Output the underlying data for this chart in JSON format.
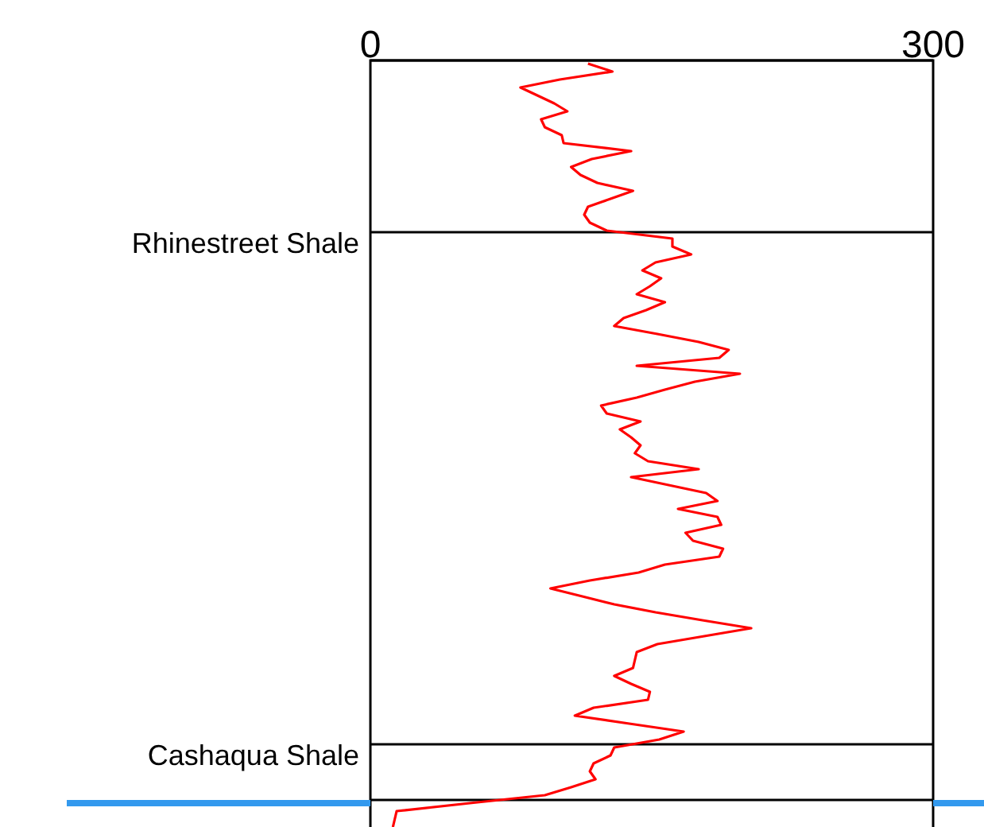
{
  "chart_data": {
    "type": "line",
    "orientation": "horizontal",
    "tick_labels": "x",
    "xlim": [
      0,
      300
    ],
    "xticks": [
      0,
      300
    ],
    "categories": [
      null,
      null,
      null,
      null,
      null,
      null,
      null,
      null,
      null,
      null,
      null,
      null,
      null,
      null,
      null,
      null,
      null,
      null,
      null,
      null,
      null,
      null,
      null,
      null,
      null,
      null,
      null,
      null,
      null,
      null,
      null,
      null,
      null,
      null,
      null,
      null,
      null,
      null,
      null,
      null,
      null,
      null,
      null,
      null,
      null,
      null,
      null,
      null,
      null,
      null,
      null,
      null,
      null,
      null,
      null,
      null,
      null,
      null,
      null,
      null,
      null,
      null,
      null,
      null,
      null,
      null,
      null,
      null,
      null,
      null,
      null,
      null,
      null,
      null,
      null,
      null,
      null,
      null,
      null,
      null,
      null,
      null,
      null,
      null,
      null,
      null,
      null,
      null,
      null,
      null,
      null,
      null,
      null,
      null,
      null,
      null,
      null
    ],
    "series": [
      {
        "color": "#ff0000",
        "values": [
          116,
          129,
          101,
          80,
          89,
          98,
          105,
          91,
          93,
          102,
          103,
          139,
          118,
          107,
          112,
          121,
          140,
          128,
          116,
          114,
          117,
          126,
          161,
          161,
          171,
          152,
          145,
          155,
          149,
          142,
          157,
          147,
          135,
          130,
          153,
          175,
          191,
          186,
          142,
          197,
          173,
          157,
          142,
          123,
          126,
          144,
          133,
          139,
          144,
          141,
          148,
          175,
          139,
          159,
          179,
          185,
          164,
          185,
          187,
          168,
          172,
          188,
          186,
          157,
          143,
          117,
          96,
          113,
          130,
          152,
          177,
          203,
          178,
          153,
          142,
          141,
          140,
          130,
          139,
          149,
          148,
          119,
          109,
          138,
          167,
          154,
          130,
          128,
          119,
          117,
          120,
          107,
          93,
          53,
          14,
          13,
          12
        ]
      }
    ],
    "annotations": [
      "Rhinestreet Shale",
      "Cashaqua Shale"
    ]
  }
}
